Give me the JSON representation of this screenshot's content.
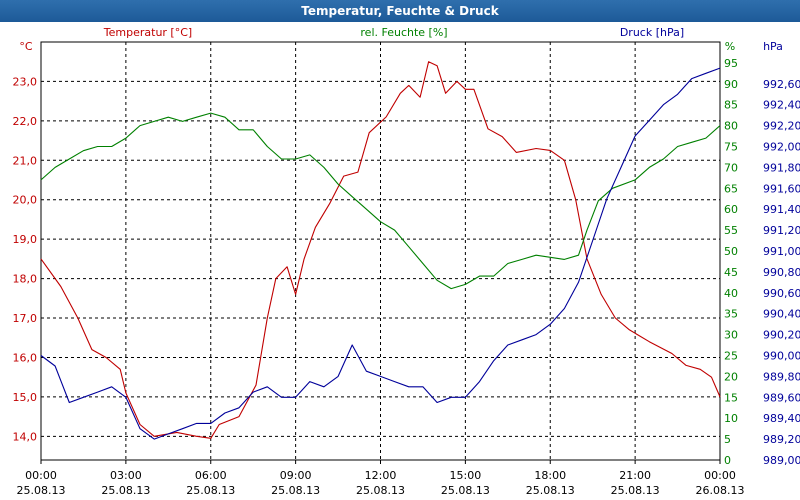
{
  "window": {
    "title": "Temperatur, Feuchte & Druck"
  },
  "colors": {
    "temperature": "#c00000",
    "humidity": "#008000",
    "pressure": "#00009a",
    "grid": "#000000",
    "title_bar": "#1d5a98"
  },
  "chart_data": {
    "type": "line",
    "title": "Temperatur, Feuchte & Druck",
    "x": {
      "range_hours": [
        0,
        24
      ],
      "ticks": [
        {
          "h": 0,
          "time": "00:00",
          "date": "25.08.13"
        },
        {
          "h": 3,
          "time": "03:00",
          "date": "25.08.13"
        },
        {
          "h": 6,
          "time": "06:00",
          "date": "25.08.13"
        },
        {
          "h": 9,
          "time": "09:00",
          "date": "25.08.13"
        },
        {
          "h": 12,
          "time": "12:00",
          "date": "25.08.13"
        },
        {
          "h": 15,
          "time": "15:00",
          "date": "25.08.13"
        },
        {
          "h": 18,
          "time": "18:00",
          "date": "25.08.13"
        },
        {
          "h": 21,
          "time": "21:00",
          "date": "25.08.13"
        },
        {
          "h": 24,
          "time": "00:00",
          "date": "26.08.13"
        }
      ]
    },
    "axes": {
      "temperature": {
        "unit": "°C",
        "label": "Temperatur [°C]",
        "range": [
          13.4,
          24.0
        ],
        "ticks": [
          "14,0",
          "15,0",
          "16,0",
          "17,0",
          "18,0",
          "19,0",
          "20,0",
          "21,0",
          "22,0",
          "23,0"
        ],
        "tick_values": [
          14,
          15,
          16,
          17,
          18,
          19,
          20,
          21,
          22,
          23
        ]
      },
      "humidity": {
        "unit": "%",
        "label": "rel. Feuchte [%]",
        "range": [
          0,
          100
        ],
        "ticks": [
          "0",
          "5",
          "10",
          "15",
          "20",
          "25",
          "30",
          "35",
          "40",
          "45",
          "50",
          "55",
          "60",
          "65",
          "70",
          "75",
          "80",
          "85",
          "90",
          "95"
        ],
        "tick_values": [
          0,
          5,
          10,
          15,
          20,
          25,
          30,
          35,
          40,
          45,
          50,
          55,
          60,
          65,
          70,
          75,
          80,
          85,
          90,
          95
        ]
      },
      "pressure": {
        "unit": "hPa",
        "label": "Druck [hPa]",
        "range": [
          989.0,
          993.0
        ],
        "ticks": [
          "989,00",
          "989,20",
          "989,40",
          "989,60",
          "989,80",
          "990,00",
          "990,20",
          "990,40",
          "990,60",
          "990,80",
          "991,00",
          "991,20",
          "991,40",
          "991,60",
          "991,80",
          "992,00",
          "992,20",
          "992,40",
          "992,60"
        ],
        "tick_values": [
          989.0,
          989.2,
          989.4,
          989.6,
          989.8,
          990.0,
          990.2,
          990.4,
          990.6,
          990.8,
          991.0,
          991.2,
          991.4,
          991.6,
          991.8,
          992.0,
          992.2,
          992.4,
          992.6
        ]
      }
    },
    "series": [
      {
        "name": "Temperatur [°C]",
        "axis": "temperature",
        "points": [
          [
            0,
            18.5
          ],
          [
            0.7,
            17.8
          ],
          [
            1.3,
            17.0
          ],
          [
            1.8,
            16.2
          ],
          [
            2.3,
            16.0
          ],
          [
            2.8,
            15.7
          ],
          [
            3.0,
            15.1
          ],
          [
            3.5,
            14.3
          ],
          [
            4.0,
            14.0
          ],
          [
            4.8,
            14.1
          ],
          [
            5.5,
            14.0
          ],
          [
            6.0,
            13.95
          ],
          [
            6.3,
            14.3
          ],
          [
            7.0,
            14.5
          ],
          [
            7.6,
            15.3
          ],
          [
            8.0,
            17.0
          ],
          [
            8.3,
            18.0
          ],
          [
            8.7,
            18.3
          ],
          [
            9.0,
            17.6
          ],
          [
            9.3,
            18.5
          ],
          [
            9.7,
            19.3
          ],
          [
            10.2,
            19.9
          ],
          [
            10.7,
            20.6
          ],
          [
            11.2,
            20.7
          ],
          [
            11.6,
            21.7
          ],
          [
            12.2,
            22.1
          ],
          [
            12.7,
            22.7
          ],
          [
            13.0,
            22.9
          ],
          [
            13.4,
            22.6
          ],
          [
            13.7,
            23.5
          ],
          [
            14.0,
            23.4
          ],
          [
            14.3,
            22.7
          ],
          [
            14.7,
            23.0
          ],
          [
            15.0,
            22.8
          ],
          [
            15.3,
            22.8
          ],
          [
            15.8,
            21.8
          ],
          [
            16.3,
            21.6
          ],
          [
            16.8,
            21.2
          ],
          [
            17.5,
            21.3
          ],
          [
            18.0,
            21.25
          ],
          [
            18.5,
            21.0
          ],
          [
            18.9,
            20.0
          ],
          [
            19.3,
            18.5
          ],
          [
            19.8,
            17.6
          ],
          [
            20.3,
            17.0
          ],
          [
            20.8,
            16.7
          ],
          [
            21.5,
            16.4
          ],
          [
            22.3,
            16.1
          ],
          [
            22.8,
            15.8
          ],
          [
            23.3,
            15.7
          ],
          [
            23.7,
            15.5
          ],
          [
            24.0,
            15.0
          ]
        ]
      },
      {
        "name": "rel. Feuchte [%]",
        "axis": "humidity",
        "points": [
          [
            0,
            67
          ],
          [
            0.5,
            70
          ],
          [
            1.0,
            72
          ],
          [
            1.5,
            74
          ],
          [
            2.0,
            75
          ],
          [
            2.5,
            75
          ],
          [
            3.0,
            77
          ],
          [
            3.5,
            80
          ],
          [
            4.0,
            81
          ],
          [
            4.5,
            82
          ],
          [
            5.0,
            81
          ],
          [
            5.5,
            82
          ],
          [
            6.0,
            83
          ],
          [
            6.5,
            82
          ],
          [
            7.0,
            79
          ],
          [
            7.5,
            79
          ],
          [
            8.0,
            75
          ],
          [
            8.5,
            72
          ],
          [
            9.0,
            72
          ],
          [
            9.5,
            73
          ],
          [
            10.0,
            70
          ],
          [
            10.5,
            66
          ],
          [
            11.0,
            63
          ],
          [
            11.5,
            60
          ],
          [
            12.0,
            57
          ],
          [
            12.5,
            55
          ],
          [
            13.0,
            51
          ],
          [
            13.5,
            47
          ],
          [
            14.0,
            43
          ],
          [
            14.5,
            41
          ],
          [
            15.0,
            42
          ],
          [
            15.5,
            44
          ],
          [
            16.0,
            44
          ],
          [
            16.5,
            47
          ],
          [
            17.0,
            48
          ],
          [
            17.5,
            49
          ],
          [
            18.0,
            48.5
          ],
          [
            18.5,
            48
          ],
          [
            19.0,
            49
          ],
          [
            19.3,
            55
          ],
          [
            19.7,
            62
          ],
          [
            20.2,
            65
          ],
          [
            21.0,
            67
          ],
          [
            21.5,
            70
          ],
          [
            22.0,
            72
          ],
          [
            22.5,
            75
          ],
          [
            23.0,
            76
          ],
          [
            23.5,
            77
          ],
          [
            24.0,
            80
          ]
        ]
      },
      {
        "name": "Druck [hPa]",
        "axis": "pressure",
        "points": [
          [
            0,
            990.0
          ],
          [
            0.5,
            989.9
          ],
          [
            1.0,
            989.55
          ],
          [
            1.5,
            989.6
          ],
          [
            2.0,
            989.65
          ],
          [
            2.5,
            989.7
          ],
          [
            3.0,
            989.6
          ],
          [
            3.5,
            989.3
          ],
          [
            4.0,
            989.2
          ],
          [
            4.5,
            989.25
          ],
          [
            5.0,
            989.3
          ],
          [
            5.5,
            989.35
          ],
          [
            6.0,
            989.35
          ],
          [
            6.5,
            989.45
          ],
          [
            7.0,
            989.5
          ],
          [
            7.5,
            989.65
          ],
          [
            8.0,
            989.7
          ],
          [
            8.5,
            989.6
          ],
          [
            9.0,
            989.6
          ],
          [
            9.5,
            989.75
          ],
          [
            10.0,
            989.7
          ],
          [
            10.5,
            989.8
          ],
          [
            11.0,
            990.1
          ],
          [
            11.5,
            989.85
          ],
          [
            12.0,
            989.8
          ],
          [
            12.5,
            989.75
          ],
          [
            13.0,
            989.7
          ],
          [
            13.5,
            989.7
          ],
          [
            14.0,
            989.55
          ],
          [
            14.5,
            989.6
          ],
          [
            15.0,
            989.6
          ],
          [
            15.5,
            989.75
          ],
          [
            16.0,
            989.95
          ],
          [
            16.5,
            990.1
          ],
          [
            17.0,
            990.15
          ],
          [
            17.5,
            990.2
          ],
          [
            18.0,
            990.3
          ],
          [
            18.5,
            990.45
          ],
          [
            19.0,
            990.7
          ],
          [
            19.5,
            991.1
          ],
          [
            20.0,
            991.5
          ],
          [
            20.5,
            991.8
          ],
          [
            21.0,
            992.1
          ],
          [
            21.5,
            992.25
          ],
          [
            22.0,
            992.4
          ],
          [
            22.5,
            992.5
          ],
          [
            23.0,
            992.65
          ],
          [
            23.5,
            992.7
          ],
          [
            24.0,
            992.75
          ]
        ]
      }
    ]
  }
}
